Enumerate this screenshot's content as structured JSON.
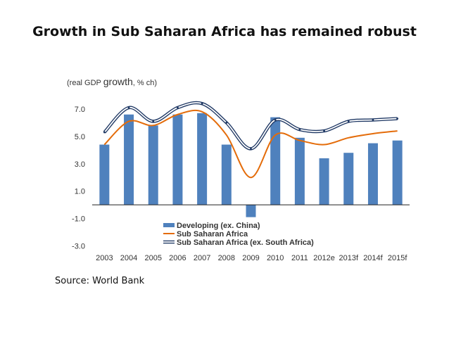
{
  "slide": {
    "title": "Growth in Sub Saharan Africa has remained robust",
    "source": "Source: World Bank"
  },
  "chart_data": {
    "type": "bar",
    "title": "Growth in Sub Saharan Africa has remained robust",
    "subtitle_prefix": "(real GDP ",
    "subtitle_emph": "growth",
    "subtitle_suffix": ", % ch)",
    "categories": [
      "2003",
      "2004",
      "2005",
      "2006",
      "2007",
      "2008",
      "2009",
      "2010",
      "2011",
      "2012e",
      "2013f",
      "2014f",
      "2015f"
    ],
    "ylim": [
      -3.0,
      8.0
    ],
    "yticks": [
      "7.0",
      "5.0",
      "3.0",
      "1.0",
      "-1.0",
      "-3.0"
    ],
    "ytick_values": [
      7,
      5,
      3,
      1,
      -1,
      -3
    ],
    "series": [
      {
        "name": "Developing (ex. China)",
        "kind": "bar",
        "color": "#4f81bd",
        "values": [
          4.4,
          6.6,
          5.8,
          6.6,
          6.7,
          4.4,
          -0.9,
          6.4,
          4.9,
          3.4,
          3.8,
          4.5,
          4.7
        ]
      },
      {
        "name": "Sub Saharan Africa",
        "kind": "line",
        "color": "#e46c0a",
        "values": [
          4.4,
          6.1,
          5.8,
          6.6,
          6.8,
          5.1,
          2.0,
          5.1,
          4.7,
          4.4,
          4.9,
          5.2,
          5.4
        ]
      },
      {
        "name": "Sub Saharan Africa (ex. South Africa)",
        "kind": "line",
        "color": "#1f3864",
        "values": [
          5.3,
          7.1,
          6.1,
          7.1,
          7.4,
          6.0,
          4.1,
          6.2,
          5.5,
          5.4,
          6.1,
          6.2,
          6.3
        ]
      }
    ],
    "legend_position": "bottom-center",
    "xlabel": "",
    "ylabel": ""
  }
}
